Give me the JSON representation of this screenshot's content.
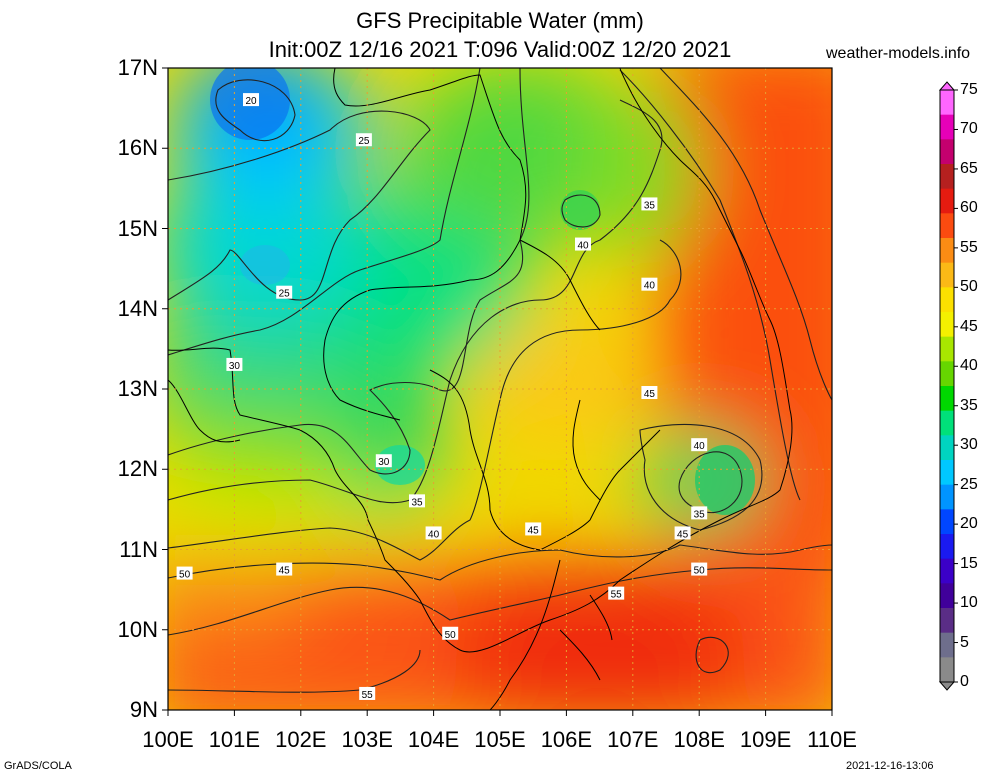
{
  "header": {
    "title_line1": "GFS Precipitable Water (mm)",
    "title_line2": "Init:00Z 12/16 2021 T:096 Valid:00Z 12/20 2021",
    "site": "weather-models.info"
  },
  "axes": {
    "lat_labels": [
      "17N",
      "16N",
      "15N",
      "14N",
      "13N",
      "12N",
      "11N",
      "10N",
      "9N"
    ],
    "lon_labels": [
      "100E",
      "101E",
      "102E",
      "103E",
      "104E",
      "105E",
      "106E",
      "107E",
      "108E",
      "109E",
      "110E"
    ],
    "lat_range": [
      9,
      17
    ],
    "lon_range": [
      100,
      110
    ]
  },
  "colorbar": {
    "labels": [
      "75",
      "70",
      "65",
      "60",
      "55",
      "50",
      "45",
      "40",
      "35",
      "30",
      "25",
      "20",
      "15",
      "10",
      "5",
      "0"
    ],
    "colors": [
      "#ff66ff",
      "#e600b8",
      "#c4006e",
      "#b5201f",
      "#e51b10",
      "#fb4b10",
      "#fb8c14",
      "#fbb916",
      "#fce000",
      "#f4f000",
      "#a8e600",
      "#66d600",
      "#00d800",
      "#00e07a",
      "#00d4c0",
      "#00c8ff",
      "#0094ff",
      "#0046ff",
      "#1a1af0",
      "#3b00c8",
      "#40009a",
      "#5a2d86",
      "#6e6e8c",
      "#8a8a8a"
    ]
  },
  "contours": {
    "labels": [
      {
        "text": "20",
        "lon": 101.25,
        "lat": 16.6
      },
      {
        "text": "25",
        "lon": 102.95,
        "lat": 16.1
      },
      {
        "text": "25",
        "lon": 101.75,
        "lat": 14.2
      },
      {
        "text": "30",
        "lon": 101.0,
        "lat": 13.3
      },
      {
        "text": "30",
        "lon": 103.25,
        "lat": 12.1
      },
      {
        "text": "35",
        "lon": 103.75,
        "lat": 11.6
      },
      {
        "text": "35",
        "lon": 107.25,
        "lat": 15.3
      },
      {
        "text": "35",
        "lon": 108.0,
        "lat": 11.45
      },
      {
        "text": "40",
        "lon": 106.25,
        "lat": 14.8
      },
      {
        "text": "40",
        "lon": 107.25,
        "lat": 14.3
      },
      {
        "text": "40",
        "lon": 104.0,
        "lat": 11.2
      },
      {
        "text": "40",
        "lon": 108.0,
        "lat": 12.3
      },
      {
        "text": "45",
        "lon": 107.25,
        "lat": 12.95
      },
      {
        "text": "45",
        "lon": 105.5,
        "lat": 11.25
      },
      {
        "text": "45",
        "lon": 101.75,
        "lat": 10.75
      },
      {
        "text": "45",
        "lon": 107.75,
        "lat": 11.2
      },
      {
        "text": "50",
        "lon": 100.25,
        "lat": 10.7
      },
      {
        "text": "50",
        "lon": 104.25,
        "lat": 9.95
      },
      {
        "text": "50",
        "lon": 108.0,
        "lat": 10.75
      },
      {
        "text": "55",
        "lon": 106.75,
        "lat": 10.45
      },
      {
        "text": "55",
        "lon": 103.0,
        "lat": 9.2
      }
    ]
  },
  "footer": {
    "left": "GrADS/COLA",
    "right": "2021-12-16-13:06"
  }
}
